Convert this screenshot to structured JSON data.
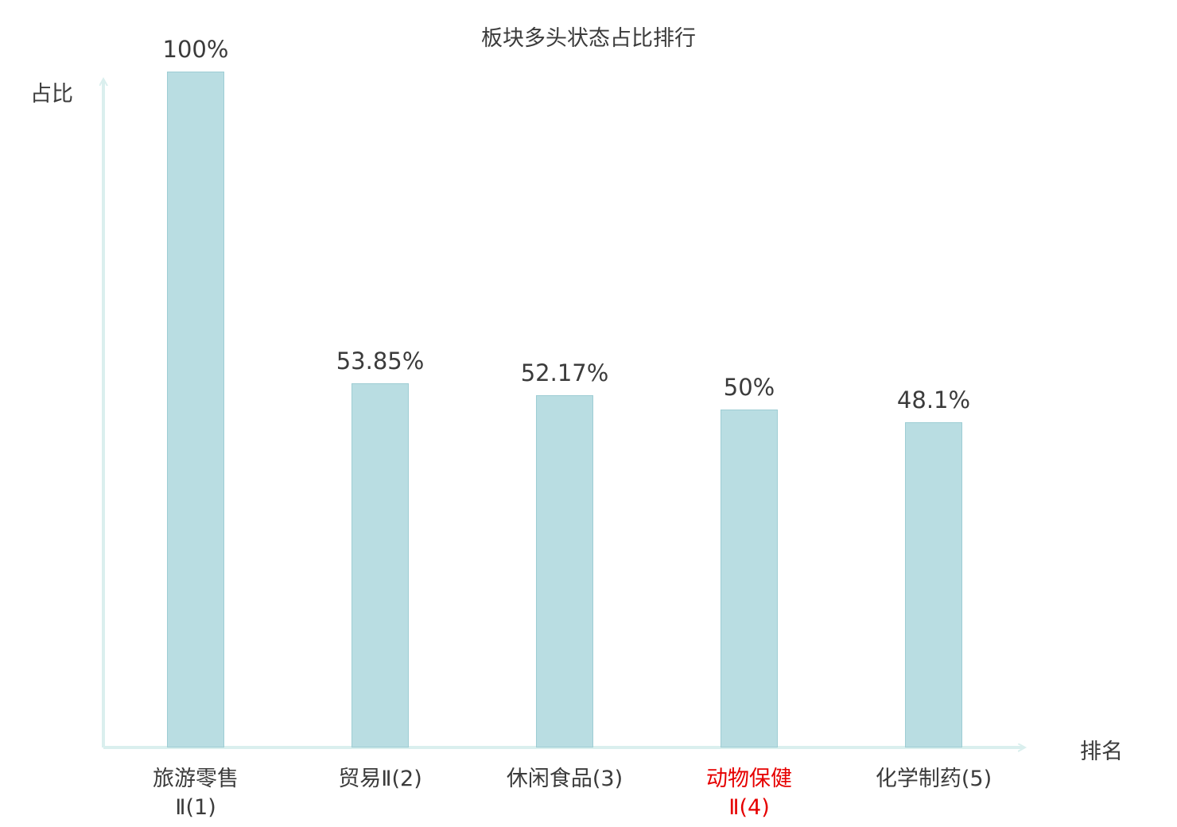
{
  "chart_data": {
    "type": "bar",
    "title": "板块多头状态占比排行",
    "ylabel": "占比",
    "xlabel": "排名",
    "categories": [
      "旅游零售\nⅡ(1)",
      "贸易Ⅱ(2)",
      "休闲食品(3)",
      "动物保健\nⅡ(4)",
      "化学制药(5)"
    ],
    "values": [
      100,
      53.85,
      52.17,
      50,
      48.1
    ],
    "value_labels": [
      "100%",
      "53.85%",
      "52.17%",
      "50%",
      "48.1%"
    ],
    "highlight_index": 3,
    "ylim": [
      0,
      100
    ],
    "grid": false,
    "legend": "none",
    "colors": {
      "bar_fill": "#b9dde2",
      "bar_border": "#9ecdd4",
      "axis": "#daefee",
      "text": "#3b3b3b",
      "highlight_text": "#e60000"
    }
  }
}
